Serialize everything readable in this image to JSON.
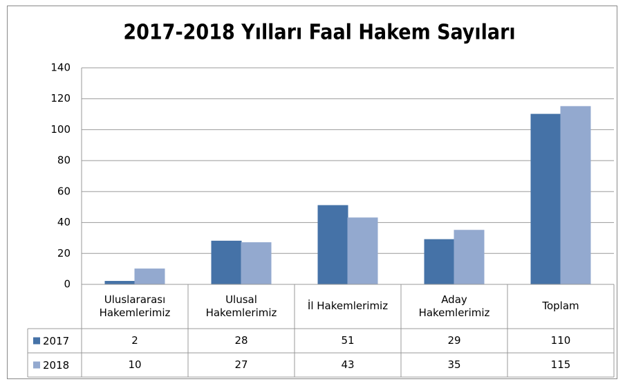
{
  "chart_data": {
    "type": "bar",
    "title": "2017-2018 Yılları Faal Hakem Sayıları",
    "categories": [
      "Uluslararası\nHakemlerimiz",
      "Ulusal\nHakemlerimiz",
      "İl Hakemlerimiz",
      "Aday\nHakemlerimiz",
      "Toplam"
    ],
    "series": [
      {
        "name": "2017",
        "color": "#4572a7",
        "values": [
          2,
          28,
          51,
          29,
          110
        ]
      },
      {
        "name": "2018",
        "color": "#93a9cf",
        "values": [
          10,
          27,
          43,
          35,
          115
        ]
      }
    ],
    "ylim": [
      0,
      140
    ],
    "yticks": [
      0,
      20,
      40,
      60,
      80,
      100,
      120,
      140
    ],
    "grid": true,
    "data_table": true
  }
}
